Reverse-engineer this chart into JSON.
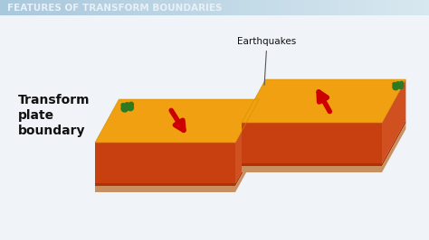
{
  "title": "FEATURES OF TRANSFORM BOUNDARIES",
  "title_bg_left": "#a8c8dc",
  "title_bg_right": "#d8e8f0",
  "title_color": "#e8f0f8",
  "bg_color": "#f0f4f8",
  "label_transform": "Transform\nplate\nboundary",
  "label_earthquakes": "Earthquakes",
  "arrow_color": "#cc0000",
  "plate_top_color": "#f0a010",
  "plate_top_highlight": "#f5b830",
  "plate_side_top_color": "#c84010",
  "plate_side_mid_color": "#b03008",
  "plate_side_bot_color": "#c89060",
  "plate_right_color": "#d05020",
  "tree_color": "#2d7a20",
  "tree_dark": "#1a5a10"
}
